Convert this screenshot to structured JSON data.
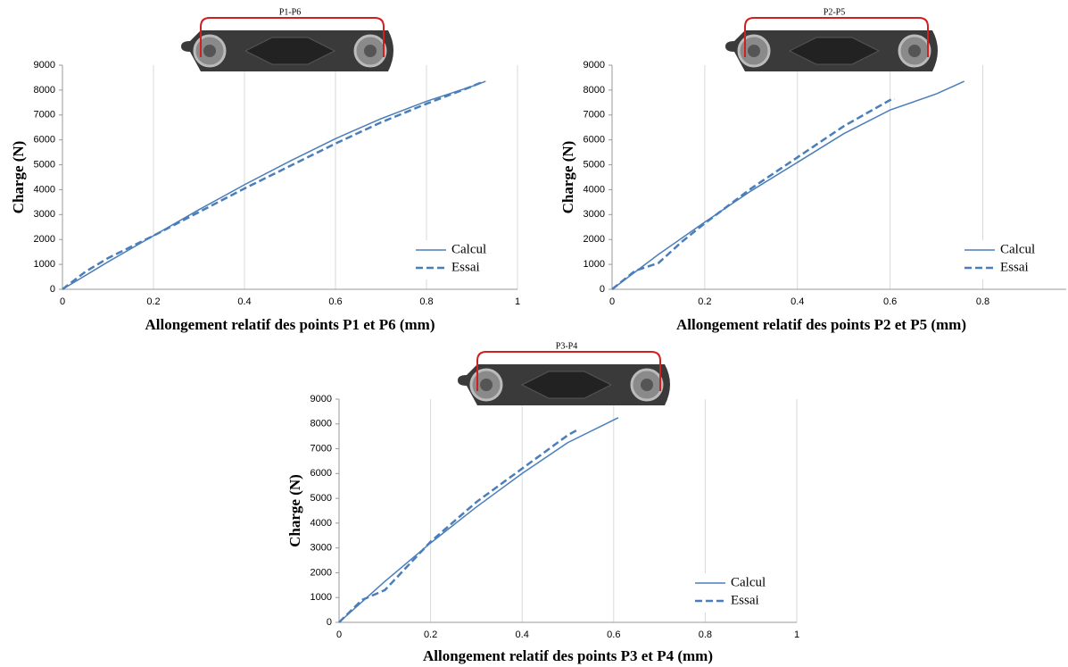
{
  "chart_data": [
    {
      "type": "line",
      "annotation": "P1-P6",
      "xlabel": "Allongement relatif des points P1 et P6 (mm)",
      "ylabel": "Charge (N)",
      "xlim": [
        0,
        1
      ],
      "ylim": [
        0,
        9000
      ],
      "xticks": [
        0,
        0.2,
        0.4,
        0.6,
        0.8,
        1
      ],
      "yticks": [
        0,
        1000,
        2000,
        3000,
        4000,
        5000,
        6000,
        7000,
        8000,
        9000
      ],
      "grid": "x",
      "legend": "lower-right",
      "series": [
        {
          "name": "Calcul",
          "color": "#4a7ebb",
          "style": "solid",
          "x": [
            0,
            0.1,
            0.2,
            0.3,
            0.4,
            0.5,
            0.6,
            0.7,
            0.8,
            0.9,
            0.93
          ],
          "values": [
            0,
            1100,
            2150,
            3200,
            4200,
            5150,
            6050,
            6850,
            7550,
            8150,
            8350
          ]
        },
        {
          "name": "Essai",
          "color": "#4a7ebb",
          "style": "dashed",
          "x": [
            0,
            0.05,
            0.1,
            0.2,
            0.3,
            0.4,
            0.5,
            0.6,
            0.7,
            0.8,
            0.9,
            0.92
          ],
          "values": [
            0,
            700,
            1250,
            2150,
            3100,
            4050,
            4950,
            5850,
            6700,
            7450,
            8150,
            8300
          ]
        }
      ]
    },
    {
      "type": "line",
      "annotation": "P2-P5",
      "xlabel": "Allongement relatif des points P2 et P5 (mm)",
      "ylabel": "Charge (N)",
      "xlim": [
        0,
        0.98
      ],
      "ylim": [
        0,
        9000
      ],
      "xticks": [
        0,
        0.2,
        0.4,
        0.6,
        0.8
      ],
      "yticks": [
        0,
        1000,
        2000,
        3000,
        4000,
        5000,
        6000,
        7000,
        8000,
        9000
      ],
      "grid": "x",
      "legend": "lower-right",
      "series": [
        {
          "name": "Calcul",
          "color": "#4a7ebb",
          "style": "solid",
          "x": [
            0,
            0.1,
            0.2,
            0.3,
            0.4,
            0.5,
            0.6,
            0.7,
            0.76
          ],
          "values": [
            0,
            1400,
            2700,
            3950,
            5100,
            6250,
            7200,
            7850,
            8350
          ]
        },
        {
          "name": "Essai",
          "color": "#4a7ebb",
          "style": "dashed",
          "x": [
            0,
            0.05,
            0.1,
            0.15,
            0.2,
            0.3,
            0.4,
            0.5,
            0.6,
            0.61
          ],
          "values": [
            0,
            750,
            1050,
            1900,
            2650,
            4050,
            5300,
            6550,
            7600,
            7650
          ]
        }
      ]
    },
    {
      "type": "line",
      "annotation": "P3-P4",
      "xlabel": "Allongement relatif des points P3 et P4 (mm)",
      "ylabel": "Charge (N)",
      "xlim": [
        0,
        1
      ],
      "ylim": [
        0,
        9000
      ],
      "xticks": [
        0,
        0.2,
        0.4,
        0.6,
        0.8,
        1
      ],
      "yticks": [
        0,
        1000,
        2000,
        3000,
        4000,
        5000,
        6000,
        7000,
        8000,
        9000
      ],
      "grid": "x",
      "legend": "lower-right",
      "series": [
        {
          "name": "Calcul",
          "color": "#4a7ebb",
          "style": "solid",
          "x": [
            0,
            0.1,
            0.2,
            0.3,
            0.4,
            0.5,
            0.61
          ],
          "values": [
            0,
            1650,
            3200,
            4650,
            6000,
            7250,
            8250
          ]
        },
        {
          "name": "Essai",
          "color": "#4a7ebb",
          "style": "dashed",
          "x": [
            0,
            0.05,
            0.1,
            0.2,
            0.3,
            0.4,
            0.5,
            0.52
          ],
          "values": [
            0,
            900,
            1300,
            3250,
            4850,
            6200,
            7550,
            7750
          ]
        }
      ]
    }
  ]
}
